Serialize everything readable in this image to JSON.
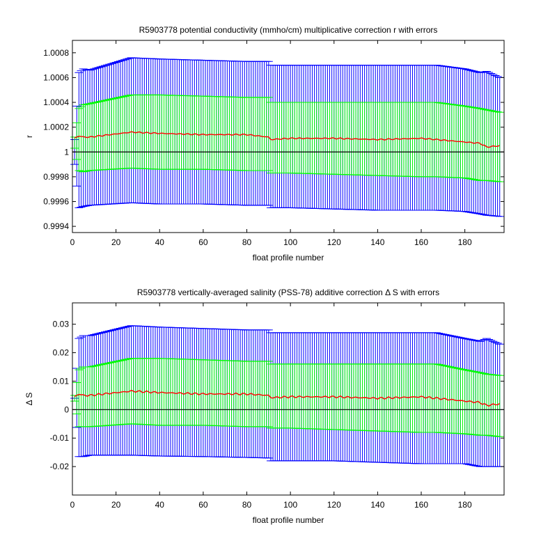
{
  "chart_data": [
    {
      "type": "line",
      "title": "R5903778 potential conductivity (mmho/cm) multiplicative correction r with errors",
      "xlabel": "float profile number",
      "ylabel": "r",
      "xlim": [
        0,
        198
      ],
      "ylim": [
        0.99935,
        1.0009
      ],
      "xticks": [
        0,
        20,
        40,
        60,
        80,
        100,
        120,
        140,
        160,
        180
      ],
      "yticks": [
        0.9994,
        0.9996,
        0.9998,
        1,
        1.0002,
        1.0004,
        1.0006,
        1.0008
      ],
      "ytick_labels": [
        "0.9994",
        "0.9996",
        "0.9998",
        "1",
        "1.0002",
        "1.0004",
        "1.0006",
        "1.0008"
      ],
      "reference_line": 1,
      "grid": false,
      "colors": {
        "correction": "#ff0000",
        "outer_error": "#0000ff",
        "inner_error": "#00ff00",
        "reference": "#000000"
      },
      "anchors": {
        "x": [
          1,
          3,
          5,
          8,
          27,
          40,
          60,
          80,
          90,
          91,
          100,
          120,
          140,
          160,
          167,
          180,
          187,
          190,
          196
        ],
        "center": [
          1.00011,
          1.00013,
          1.00012,
          1.00012,
          1.00016,
          1.00015,
          1.00014,
          1.00014,
          1.00012,
          1.0001,
          1.00011,
          1.00011,
          1.0001,
          1.00011,
          1.0001,
          1.00008,
          1.00007,
          1.00004,
          1.00005
        ],
        "outer_upper": [
          1.0001,
          1.00064,
          1.00067,
          1.00066,
          1.00076,
          1.00075,
          1.00074,
          1.00073,
          1.00073,
          1.0007,
          1.0007,
          1.0007,
          1.0007,
          1.0007,
          1.0007,
          1.00067,
          1.00064,
          1.00065,
          1.0006
        ],
        "outer_lower": [
          0.9999,
          0.99955,
          0.99956,
          0.99957,
          0.99959,
          0.99958,
          0.99958,
          0.99957,
          0.99957,
          0.99955,
          0.99955,
          0.99954,
          0.99953,
          0.99953,
          0.99953,
          0.99952,
          0.9995,
          0.99949,
          0.99948
        ],
        "inner_upper": [
          1.00012,
          1.00035,
          1.00038,
          1.00039,
          1.00046,
          1.00046,
          1.00045,
          1.00044,
          1.00044,
          1.0004,
          1.0004,
          1.0004,
          1.0004,
          1.0004,
          1.0004,
          1.00037,
          1.00035,
          1.00034,
          1.00032
        ],
        "inner_lower": [
          1.00003,
          0.99985,
          0.99984,
          0.99985,
          0.99987,
          0.99986,
          0.99986,
          0.99985,
          0.99985,
          0.99983,
          0.99983,
          0.99982,
          0.99981,
          0.9998,
          0.9998,
          0.99979,
          0.99977,
          0.99977,
          0.99976
        ]
      },
      "x_range": [
        1,
        196
      ],
      "wiggle_amplitude": 6e-06
    },
    {
      "type": "line",
      "title": "R5903778 vertically-averaged salinity (PSS-78) additive correction Δ S with errors",
      "xlabel": "float profile number",
      "ylabel": "Δ S",
      "xlim": [
        0,
        198
      ],
      "ylim": [
        -0.03,
        0.0375
      ],
      "xticks": [
        0,
        20,
        40,
        60,
        80,
        100,
        120,
        140,
        160,
        180
      ],
      "yticks": [
        -0.02,
        -0.01,
        0,
        0.01,
        0.02,
        0.03
      ],
      "ytick_labels": [
        "-0.02",
        "-0.01",
        "0",
        "0.01",
        "0.02",
        "0.03"
      ],
      "reference_line": 0,
      "grid": false,
      "colors": {
        "correction": "#ff0000",
        "outer_error": "#0000ff",
        "inner_error": "#00ff00",
        "reference": "#000000"
      },
      "anchors": {
        "x": [
          1,
          3,
          5,
          8,
          27,
          40,
          60,
          80,
          90,
          91,
          100,
          120,
          140,
          160,
          167,
          180,
          187,
          190,
          196
        ],
        "center": [
          0.0045,
          0.0055,
          0.005,
          0.005,
          0.0065,
          0.006,
          0.0055,
          0.0055,
          0.005,
          0.0042,
          0.0045,
          0.0045,
          0.004,
          0.0045,
          0.004,
          0.003,
          0.0025,
          0.0015,
          0.002
        ],
        "outer_upper": [
          0.004,
          0.025,
          0.026,
          0.026,
          0.0295,
          0.029,
          0.0285,
          0.028,
          0.028,
          0.027,
          0.027,
          0.027,
          0.027,
          0.027,
          0.027,
          0.025,
          0.024,
          0.025,
          0.023
        ],
        "outer_lower": [
          0.004,
          -0.0165,
          -0.0165,
          -0.016,
          -0.016,
          -0.0163,
          -0.0165,
          -0.0168,
          -0.017,
          -0.018,
          -0.018,
          -0.018,
          -0.0185,
          -0.019,
          -0.019,
          -0.019,
          -0.02,
          -0.02,
          -0.02
        ],
        "inner_upper": [
          0.005,
          0.014,
          0.015,
          0.015,
          0.018,
          0.018,
          0.0175,
          0.017,
          0.017,
          0.016,
          0.016,
          0.016,
          0.016,
          0.016,
          0.016,
          0.014,
          0.013,
          0.0125,
          0.012
        ],
        "inner_lower": [
          0.003,
          -0.006,
          -0.006,
          -0.006,
          -0.005,
          -0.0055,
          -0.0055,
          -0.006,
          -0.006,
          -0.0065,
          -0.0065,
          -0.007,
          -0.0075,
          -0.008,
          -0.008,
          -0.0085,
          -0.009,
          -0.009,
          -0.0095
        ]
      },
      "x_range": [
        1,
        196
      ],
      "wiggle_amplitude": 0.0004
    }
  ]
}
